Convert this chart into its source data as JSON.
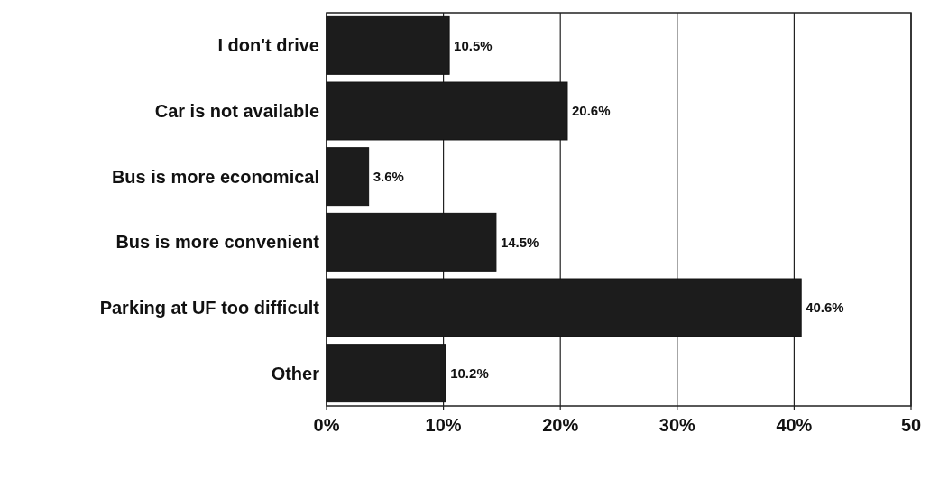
{
  "chart_data": {
    "type": "bar",
    "orientation": "horizontal",
    "categories": [
      "I don't drive",
      "Car is not available",
      "Bus is more economical",
      "Bus is more convenient",
      "Parking at UF too difficult",
      "Other"
    ],
    "values": [
      10.5,
      20.6,
      3.6,
      14.5,
      40.6,
      10.2
    ],
    "color": "#1c1c1c",
    "value_labels": [
      "10.5%",
      "20.6%",
      "3.6%",
      "14.5%",
      "40.6%",
      "10.2%"
    ],
    "xlim": [
      0,
      50
    ],
    "xticks": [
      {
        "value": 0,
        "label": "0%"
      },
      {
        "value": 10,
        "label": "10%"
      },
      {
        "value": 20,
        "label": "20%"
      },
      {
        "value": 30,
        "label": "30%"
      },
      {
        "value": 40,
        "label": "40%"
      },
      {
        "value": 50,
        "label": "50"
      }
    ],
    "grid": "x"
  }
}
